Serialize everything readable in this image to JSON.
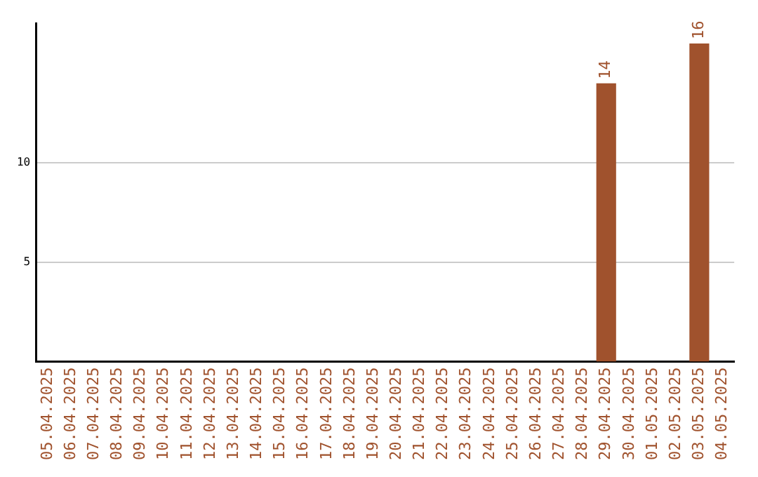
{
  "chart_data": {
    "type": "bar",
    "categories": [
      "05.04.2025",
      "06.04.2025",
      "07.04.2025",
      "08.04.2025",
      "09.04.2025",
      "10.04.2025",
      "11.04.2025",
      "12.04.2025",
      "13.04.2025",
      "14.04.2025",
      "15.04.2025",
      "16.04.2025",
      "17.04.2025",
      "18.04.2025",
      "19.04.2025",
      "20.04.2025",
      "21.04.2025",
      "22.04.2025",
      "23.04.2025",
      "24.04.2025",
      "25.04.2025",
      "26.04.2025",
      "27.04.2025",
      "28.04.2025",
      "29.04.2025",
      "30.04.2025",
      "01.05.2025",
      "02.05.2025",
      "03.05.2025",
      "04.05.2025"
    ],
    "values": [
      null,
      null,
      null,
      null,
      null,
      null,
      null,
      null,
      null,
      null,
      null,
      null,
      null,
      null,
      null,
      null,
      null,
      null,
      null,
      null,
      null,
      null,
      null,
      null,
      14,
      null,
      null,
      null,
      16,
      null
    ],
    "color": "#a0522d",
    "ylim": [
      0,
      17
    ],
    "yticks": [
      5,
      10
    ],
    "grid": "y",
    "data_labels": true,
    "legend": false
  }
}
